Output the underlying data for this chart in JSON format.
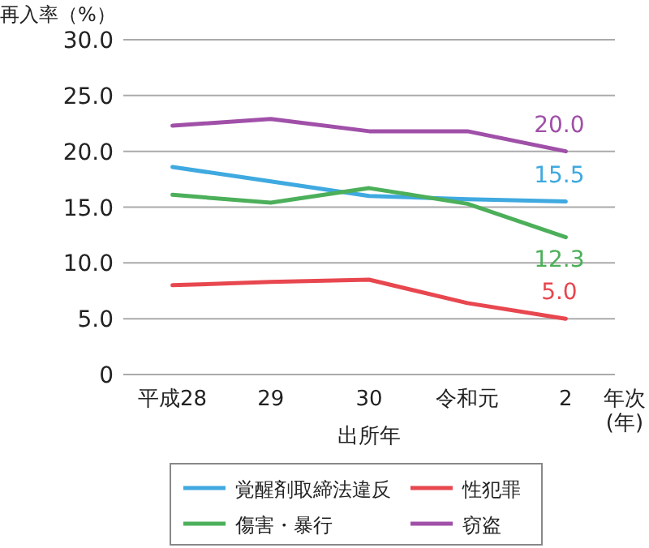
{
  "chart_data": {
    "type": "line",
    "ylabel": "再入率（%）",
    "xlabel": "出所年",
    "annotations": [
      "年次\n(年)"
    ],
    "categories": [
      "平成28",
      "29",
      "30",
      "令和元",
      "2"
    ],
    "ylim": [
      0,
      30
    ],
    "yticks": [
      {
        "value": 0,
        "label": "0"
      },
      {
        "value": 5,
        "label": "5.0"
      },
      {
        "value": 10,
        "label": "10.0"
      },
      {
        "value": 15,
        "label": "15.0"
      },
      {
        "value": 20,
        "label": "20.0"
      },
      {
        "value": 25,
        "label": "25.0"
      },
      {
        "value": 30,
        "label": "30.0"
      }
    ],
    "grid": "y",
    "legend": "bottom",
    "marker": "none",
    "line_style": "solid",
    "series": [
      {
        "name": "覚醒剤取締法違反",
        "color": "#3fa9e0",
        "values": [
          18.6,
          17.3,
          16.0,
          15.7,
          15.5
        ],
        "value_labels": [
          null,
          null,
          null,
          null,
          "15.5"
        ]
      },
      {
        "name": "性犯罪",
        "color": "#e8474f",
        "values": [
          8.0,
          8.3,
          8.5,
          6.4,
          5.0
        ],
        "value_labels": [
          null,
          null,
          null,
          null,
          "5.0"
        ]
      },
      {
        "name": "傷害・暴行",
        "color": "#4caf5a",
        "values": [
          16.1,
          15.4,
          16.7,
          15.3,
          12.3
        ],
        "value_labels": [
          null,
          null,
          null,
          null,
          "12.3"
        ]
      },
      {
        "name": "窃盗",
        "color": "#a050a8",
        "values": [
          22.3,
          22.9,
          21.8,
          21.8,
          20.0
        ],
        "value_labels": [
          null,
          null,
          null,
          null,
          "20.0"
        ]
      }
    ]
  }
}
